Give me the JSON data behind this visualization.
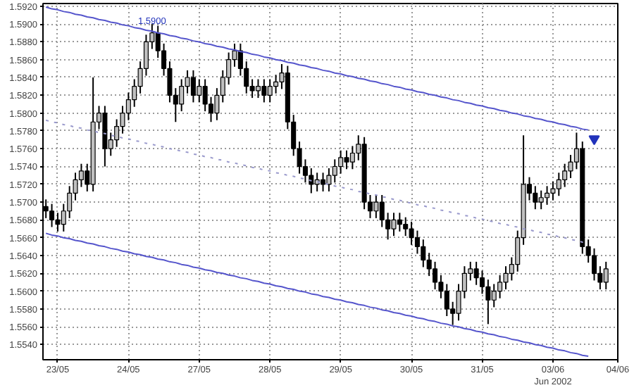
{
  "chart_data": {
    "type": "candlestick",
    "categories": [
      null,
      null,
      "23/05",
      null,
      null,
      null,
      null,
      null,
      null,
      null,
      null,
      null,
      null,
      null,
      "24/05",
      null,
      null,
      null,
      null,
      null,
      null,
      null,
      null,
      null,
      null,
      null,
      "27/05",
      null,
      null,
      null,
      null,
      null,
      null,
      null,
      null,
      null,
      null,
      null,
      "28/05",
      null,
      null,
      null,
      null,
      null,
      null,
      null,
      null,
      null,
      null,
      null,
      "29/05",
      null,
      null,
      null,
      null,
      null,
      null,
      null,
      null,
      null,
      null,
      null,
      "30/05",
      null,
      null,
      null,
      null,
      null,
      null,
      null,
      null,
      null,
      null,
      null,
      "31/05",
      null,
      null,
      null,
      null,
      null,
      null,
      null,
      null,
      null,
      null,
      null,
      "03/06\nJun 2002",
      null,
      null,
      null,
      null,
      null,
      null,
      null,
      null,
      null,
      null,
      "04/06"
    ],
    "ohlc": [
      [
        1.5695,
        1.5703,
        1.5682,
        1.569
      ],
      [
        1.569,
        1.5698,
        1.5672,
        1.568
      ],
      [
        1.568,
        1.5688,
        1.5667,
        1.5675
      ],
      [
        1.5675,
        1.5698,
        1.5667,
        1.569
      ],
      [
        1.569,
        1.5718,
        1.5682,
        1.571
      ],
      [
        1.571,
        1.5733,
        1.5702,
        1.5725
      ],
      [
        1.5725,
        1.5743,
        1.5717,
        1.5735
      ],
      [
        1.5735,
        1.5743,
        1.5712,
        1.572
      ],
      [
        1.572,
        1.584,
        1.5712,
        1.579
      ],
      [
        1.579,
        1.5808,
        1.5782,
        1.58
      ],
      [
        1.58,
        1.5808,
        1.574,
        1.576
      ],
      [
        1.576,
        1.5778,
        1.5752,
        1.577
      ],
      [
        1.577,
        1.5793,
        1.5762,
        1.5785
      ],
      [
        1.5785,
        1.5808,
        1.5777,
        1.58
      ],
      [
        1.58,
        1.5823,
        1.5792,
        1.5815
      ],
      [
        1.5815,
        1.5838,
        1.5807,
        1.583
      ],
      [
        1.583,
        1.5858,
        1.5822,
        1.585
      ],
      [
        1.585,
        1.5888,
        1.5842,
        1.588
      ],
      [
        1.588,
        1.59,
        1.5872,
        1.589
      ],
      [
        1.589,
        1.5898,
        1.5862,
        1.587
      ],
      [
        1.587,
        1.5878,
        1.5842,
        1.585
      ],
      [
        1.585,
        1.5858,
        1.5812,
        1.582
      ],
      [
        1.582,
        1.5828,
        1.579,
        1.581
      ],
      [
        1.581,
        1.5838,
        1.5802,
        1.583
      ],
      [
        1.583,
        1.5848,
        1.5822,
        1.584
      ],
      [
        1.584,
        1.5848,
        1.5812,
        1.582
      ],
      [
        1.582,
        1.5838,
        1.5812,
        1.583
      ],
      [
        1.583,
        1.5838,
        1.5802,
        1.581
      ],
      [
        1.581,
        1.5818,
        1.579,
        1.58
      ],
      [
        1.58,
        1.5828,
        1.5792,
        1.582
      ],
      [
        1.582,
        1.5848,
        1.5812,
        1.584
      ],
      [
        1.584,
        1.5868,
        1.5832,
        1.586
      ],
      [
        1.586,
        1.5878,
        1.5852,
        1.587
      ],
      [
        1.587,
        1.5878,
        1.5842,
        1.585
      ],
      [
        1.585,
        1.5858,
        1.5822,
        1.583
      ],
      [
        1.583,
        1.5838,
        1.5817,
        1.5825
      ],
      [
        1.5825,
        1.5838,
        1.5817,
        1.583
      ],
      [
        1.583,
        1.5838,
        1.5812,
        1.582
      ],
      [
        1.582,
        1.5838,
        1.5812,
        1.583
      ],
      [
        1.583,
        1.5843,
        1.5822,
        1.5835
      ],
      [
        1.5835,
        1.5855,
        1.5827,
        1.5845
      ],
      [
        1.5845,
        1.5853,
        1.5782,
        1.579
      ],
      [
        1.579,
        1.5798,
        1.5752,
        1.576
      ],
      [
        1.576,
        1.5768,
        1.5732,
        1.574
      ],
      [
        1.574,
        1.5748,
        1.5722,
        1.573
      ],
      [
        1.573,
        1.5738,
        1.571,
        1.572
      ],
      [
        1.572,
        1.5733,
        1.5712,
        1.5725
      ],
      [
        1.5725,
        1.5733,
        1.5712,
        1.572
      ],
      [
        1.572,
        1.5738,
        1.5712,
        1.573
      ],
      [
        1.573,
        1.5748,
        1.5722,
        1.574
      ],
      [
        1.574,
        1.5758,
        1.5732,
        1.575
      ],
      [
        1.575,
        1.5758,
        1.5737,
        1.5745
      ],
      [
        1.5745,
        1.5763,
        1.5737,
        1.5755
      ],
      [
        1.5755,
        1.5775,
        1.5747,
        1.5765
      ],
      [
        1.5765,
        1.5773,
        1.5692,
        1.57
      ],
      [
        1.57,
        1.5708,
        1.5682,
        1.569
      ],
      [
        1.569,
        1.5708,
        1.5682,
        1.57
      ],
      [
        1.57,
        1.5708,
        1.5672,
        1.568
      ],
      [
        1.568,
        1.5688,
        1.5658,
        1.567
      ],
      [
        1.567,
        1.5688,
        1.5662,
        1.568
      ],
      [
        1.568,
        1.5688,
        1.5667,
        1.5675
      ],
      [
        1.5675,
        1.5683,
        1.5662,
        1.567
      ],
      [
        1.567,
        1.5678,
        1.5652,
        1.566
      ],
      [
        1.566,
        1.5668,
        1.5642,
        1.565
      ],
      [
        1.565,
        1.5658,
        1.5627,
        1.5635
      ],
      [
        1.5635,
        1.5643,
        1.5617,
        1.5625
      ],
      [
        1.5625,
        1.5633,
        1.5602,
        1.561
      ],
      [
        1.561,
        1.5618,
        1.5592,
        1.56
      ],
      [
        1.56,
        1.5608,
        1.5572,
        1.558
      ],
      [
        1.558,
        1.5588,
        1.5562,
        1.5575
      ],
      [
        1.5575,
        1.5608,
        1.5567,
        1.56
      ],
      [
        1.56,
        1.5628,
        1.5592,
        1.562
      ],
      [
        1.562,
        1.5633,
        1.5612,
        1.5625
      ],
      [
        1.5625,
        1.5633,
        1.5607,
        1.5615
      ],
      [
        1.5615,
        1.5623,
        1.5597,
        1.5605
      ],
      [
        1.5605,
        1.5613,
        1.5563,
        1.559
      ],
      [
        1.559,
        1.5608,
        1.5582,
        1.56
      ],
      [
        1.56,
        1.5618,
        1.5592,
        1.561
      ],
      [
        1.561,
        1.5628,
        1.5602,
        1.562
      ],
      [
        1.562,
        1.5638,
        1.5612,
        1.563
      ],
      [
        1.563,
        1.5668,
        1.5622,
        1.566
      ],
      [
        1.566,
        1.5775,
        1.5652,
        1.572
      ],
      [
        1.572,
        1.5728,
        1.5702,
        1.571
      ],
      [
        1.571,
        1.5718,
        1.5692,
        1.57
      ],
      [
        1.57,
        1.5713,
        1.5692,
        1.5705
      ],
      [
        1.5705,
        1.5718,
        1.5697,
        1.571
      ],
      [
        1.571,
        1.5723,
        1.5702,
        1.5715
      ],
      [
        1.5715,
        1.5733,
        1.5707,
        1.5725
      ],
      [
        1.5725,
        1.5743,
        1.5717,
        1.5735
      ],
      [
        1.5735,
        1.5753,
        1.5727,
        1.5745
      ],
      [
        1.5745,
        1.5778,
        1.5737,
        1.576
      ],
      [
        1.576,
        1.5768,
        1.5642,
        1.565
      ],
      [
        1.565,
        1.5658,
        1.5632,
        1.564
      ],
      [
        1.564,
        1.5648,
        1.5612,
        1.562
      ],
      [
        1.562,
        1.5628,
        1.5602,
        1.561
      ],
      [
        1.561,
        1.5633,
        1.5602,
        1.5625
      ],
      null,
      null
    ],
    "colors": [
      "#000000",
      "#000000",
      "#000000",
      "#c0c0c0",
      "#c0c0c0",
      "#c0c0c0",
      "#c0c0c0",
      "#000000",
      "#c0c0c0",
      "#c0c0c0",
      "#000000",
      "#c0c0c0",
      "#c0c0c0",
      "#c0c0c0",
      "#c0c0c0",
      "#c0c0c0",
      "#c0c0c0",
      "#c0c0c0",
      "#c0c0c0",
      "#000000",
      "#000000",
      "#000000",
      "#000000",
      "#c0c0c0",
      "#c0c0c0",
      "#000000",
      "#c0c0c0",
      "#000000",
      "#000000",
      "#c0c0c0",
      "#c0c0c0",
      "#c0c0c0",
      "#c0c0c0",
      "#000000",
      "#000000",
      "#000000",
      "#c0c0c0",
      "#000000",
      "#c0c0c0",
      "#c0c0c0",
      "#c0c0c0",
      "#000000",
      "#000000",
      "#000000",
      "#000000",
      "#000000",
      "#c0c0c0",
      "#000000",
      "#c0c0c0",
      "#c0c0c0",
      "#c0c0c0",
      "#000000",
      "#c0c0c0",
      "#c0c0c0",
      "#000000",
      "#000000",
      "#c0c0c0",
      "#000000",
      "#000000",
      "#c0c0c0",
      "#000000",
      "#000000",
      "#000000",
      "#000000",
      "#000000",
      "#000000",
      "#000000",
      "#000000",
      "#000000",
      "#000000",
      "#c0c0c0",
      "#c0c0c0",
      "#c0c0c0",
      "#000000",
      "#000000",
      "#000000",
      "#c0c0c0",
      "#c0c0c0",
      "#c0c0c0",
      "#c0c0c0",
      "#c0c0c0",
      "#c0c0c0",
      "#000000",
      "#000000",
      "#c0c0c0",
      "#c0c0c0",
      "#c0c0c0",
      "#c0c0c0",
      "#c0c0c0",
      "#c0c0c0",
      "#c0c0c0",
      "#000000",
      "#000000",
      "#000000",
      "#000000",
      "#c0c0c0",
      null,
      null
    ],
    "series": [
      {
        "type": "line",
        "color": "#5555cc",
        "line_style": "solid",
        "values": [
          1.5919,
          1.5917,
          1.5916,
          1.5914,
          1.5913,
          1.5911,
          1.591,
          1.5908,
          1.5907,
          1.5905,
          1.5904,
          1.5902,
          1.5901,
          1.5899,
          1.5898,
          1.5896,
          1.5895,
          1.5893,
          1.5892,
          1.589,
          1.5889,
          1.5887,
          1.5886,
          1.5884,
          1.5883,
          1.5881,
          1.588,
          1.5878,
          1.5877,
          1.5875,
          1.5874,
          1.5872,
          1.5871,
          1.5869,
          1.5868,
          1.5866,
          1.5865,
          1.5863,
          1.5862,
          1.586,
          1.5859,
          1.5857,
          1.5856,
          1.5854,
          1.5853,
          1.5851,
          1.585,
          1.5848,
          1.5847,
          1.5845,
          1.5844,
          1.5842,
          1.5841,
          1.5839,
          1.5838,
          1.5836,
          1.5835,
          1.5833,
          1.5832,
          1.583,
          1.5829,
          1.5827,
          1.5826,
          1.5824,
          1.5823,
          1.5821,
          1.582,
          1.5818,
          1.5817,
          1.5815,
          1.5814,
          1.5812,
          1.5811,
          1.5809,
          1.5808,
          1.5806,
          1.5805,
          1.5803,
          1.5802,
          1.58,
          1.5799,
          1.5797,
          1.5796,
          1.5794,
          1.5793,
          1.5791,
          1.579,
          1.5788,
          1.5787,
          1.5785,
          1.5784,
          1.5782,
          1.5781,
          null,
          null,
          null,
          null,
          null
        ]
      },
      {
        "type": "line",
        "color": "#9999cc",
        "line_style": "dotted",
        "values": [
          1.5792,
          1.579,
          1.5789,
          1.5787,
          1.5786,
          1.5784,
          1.5783,
          1.5781,
          1.578,
          1.5778,
          1.5777,
          1.5775,
          1.5774,
          1.5772,
          1.5771,
          1.5769,
          1.5768,
          1.5766,
          1.5765,
          1.5763,
          1.5762,
          1.576,
          1.5759,
          1.5757,
          1.5756,
          1.5754,
          1.5753,
          1.5751,
          1.575,
          1.5748,
          1.5747,
          1.5745,
          1.5744,
          1.5742,
          1.5741,
          1.5739,
          1.5738,
          1.5736,
          1.5735,
          1.5733,
          1.5732,
          1.573,
          1.5729,
          1.5727,
          1.5726,
          1.5724,
          1.5723,
          1.5721,
          1.572,
          1.5718,
          1.5717,
          1.5715,
          1.5714,
          1.5712,
          1.5711,
          1.5709,
          1.5708,
          1.5706,
          1.5705,
          1.5703,
          1.5702,
          1.57,
          1.5699,
          1.5697,
          1.5696,
          1.5694,
          1.5693,
          1.5691,
          1.569,
          1.5688,
          1.5687,
          1.5685,
          1.5684,
          1.5682,
          1.5681,
          1.5679,
          1.5678,
          1.5676,
          1.5675,
          1.5673,
          1.5672,
          1.567,
          1.5669,
          1.5667,
          1.5666,
          1.5664,
          1.5663,
          1.5661,
          1.566,
          1.5658,
          1.5657,
          1.5655,
          1.5654,
          null,
          null,
          null,
          null,
          null
        ]
      },
      {
        "type": "line",
        "color": "#5555cc",
        "line_style": "solid",
        "values": [
          1.5665,
          1.5663,
          1.5662,
          1.566,
          1.5659,
          1.5657,
          1.5656,
          1.5654,
          1.5653,
          1.5651,
          1.565,
          1.5648,
          1.5647,
          1.5645,
          1.5644,
          1.5642,
          1.5641,
          1.5639,
          1.5638,
          1.5636,
          1.5635,
          1.5633,
          1.5632,
          1.563,
          1.5629,
          1.5627,
          1.5626,
          1.5624,
          1.5623,
          1.5621,
          1.562,
          1.5618,
          1.5617,
          1.5615,
          1.5614,
          1.5612,
          1.5611,
          1.5609,
          1.5608,
          1.5606,
          1.5605,
          1.5603,
          1.5602,
          1.56,
          1.5599,
          1.5597,
          1.5596,
          1.5594,
          1.5593,
          1.5591,
          1.559,
          1.5588,
          1.5587,
          1.5585,
          1.5584,
          1.5582,
          1.5581,
          1.5579,
          1.5578,
          1.5576,
          1.5575,
          1.5573,
          1.5572,
          1.557,
          1.5569,
          1.5567,
          1.5566,
          1.5564,
          1.5563,
          1.5561,
          1.556,
          1.5558,
          1.5557,
          1.5555,
          1.5554,
          1.5552,
          1.5551,
          1.5549,
          1.5548,
          1.5546,
          1.5545,
          1.5543,
          1.5542,
          1.554,
          1.5539,
          1.5537,
          1.5536,
          1.5534,
          1.5533,
          1.5531,
          1.553,
          1.5528,
          1.5527,
          null,
          null,
          null,
          null,
          null
        ]
      },
      {
        "type": "scatter",
        "color": "#2233bb",
        "marker": "triangle",
        "values": [
          null,
          null,
          null,
          null,
          null,
          null,
          null,
          null,
          null,
          null,
          null,
          null,
          null,
          null,
          null,
          null,
          null,
          null,
          null,
          null,
          null,
          null,
          null,
          null,
          null,
          null,
          null,
          null,
          null,
          null,
          null,
          null,
          null,
          null,
          null,
          null,
          null,
          null,
          null,
          null,
          null,
          null,
          null,
          null,
          null,
          null,
          null,
          null,
          null,
          null,
          null,
          null,
          null,
          null,
          null,
          null,
          null,
          null,
          null,
          null,
          null,
          null,
          null,
          null,
          null,
          null,
          null,
          null,
          null,
          null,
          null,
          null,
          null,
          null,
          null,
          null,
          null,
          null,
          null,
          null,
          null,
          null,
          null,
          null,
          null,
          null,
          null,
          null,
          null,
          null,
          null,
          null,
          null,
          1.5771,
          null,
          null,
          null,
          null
        ]
      }
    ],
    "ylim": [
      1.5523,
      1.5923
    ],
    "yticks": [
      {
        "value": 1.554,
        "label": "1.5540"
      },
      {
        "value": 1.556,
        "label": "1.5560"
      },
      {
        "value": 1.558,
        "label": "1.5580"
      },
      {
        "value": 1.56,
        "label": "1.5600"
      },
      {
        "value": 1.562,
        "label": "1.5620"
      },
      {
        "value": 1.564,
        "label": "1.5640"
      },
      {
        "value": 1.566,
        "label": "1.5660"
      },
      {
        "value": 1.568,
        "label": "1.5680"
      },
      {
        "value": 1.57,
        "label": "1.5700"
      },
      {
        "value": 1.572,
        "label": "1.5720"
      },
      {
        "value": 1.574,
        "label": "1.5740"
      },
      {
        "value": 1.576,
        "label": "1.5760"
      },
      {
        "value": 1.578,
        "label": "1.5780"
      },
      {
        "value": 1.58,
        "label": "1.5800"
      },
      {
        "value": 1.582,
        "label": "1.5820"
      },
      {
        "value": 1.584,
        "label": "1.5840"
      },
      {
        "value": 1.586,
        "label": "1.5860"
      },
      {
        "value": 1.588,
        "label": "1.5880"
      },
      {
        "value": 1.59,
        "label": "1.5900"
      },
      {
        "value": 1.592,
        "label": "1.5920"
      }
    ],
    "annotations": [
      {
        "text": "1.5900",
        "y": 1.59
      }
    ],
    "grid": true
  }
}
